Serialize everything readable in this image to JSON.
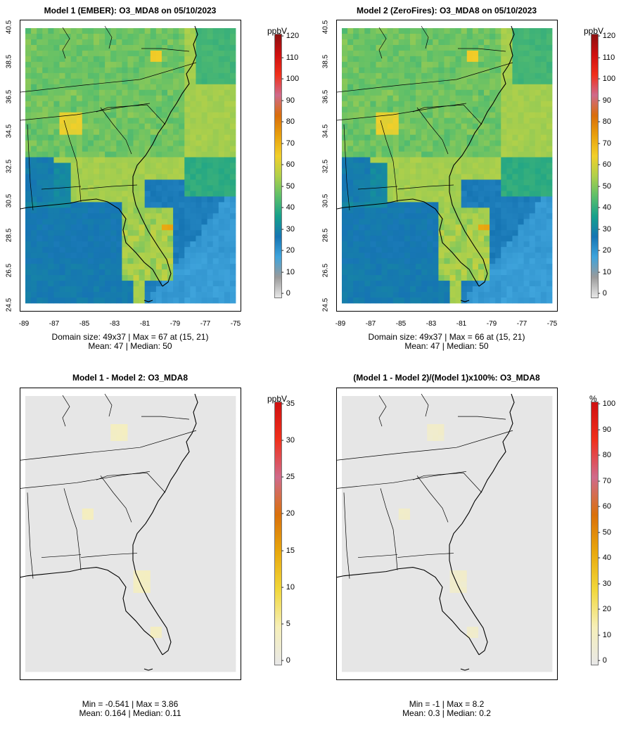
{
  "panels": [
    {
      "title": "Model 1 (EMBER): O3_MDA8 on 05/10/2023",
      "stats_line1": "Domain size: 49x37 | Max = 67 at (15, 21)",
      "stats_line2": "Mean: 47 |  Median: 50",
      "colorbar": {
        "unit": "ppbV",
        "ticks": [
          "120",
          "110",
          "100",
          "90",
          "80",
          "70",
          "60",
          "50",
          "40",
          "30",
          "20",
          "10",
          "0"
        ],
        "scale": "ozone"
      },
      "lat_ticks": [
        "40.5",
        "38.5",
        "36.5",
        "34.5",
        "32.5",
        "30.5",
        "28.5",
        "26.5",
        "24.5"
      ],
      "lon_ticks": [
        "-89",
        "-87",
        "-85",
        "-83",
        "-81",
        "-79",
        "-77",
        "-75"
      ],
      "field": "model1"
    },
    {
      "title": "Model 2 (ZeroFires): O3_MDA8 on 05/10/2023",
      "stats_line1": "Domain size: 49x37 | Max = 66 at (15, 21)",
      "stats_line2": "Mean: 47 |  Median: 50",
      "colorbar": {
        "unit": "ppbV",
        "ticks": [
          "120",
          "110",
          "100",
          "90",
          "80",
          "70",
          "60",
          "50",
          "40",
          "30",
          "20",
          "10",
          "0"
        ],
        "scale": "ozone"
      },
      "lat_ticks": [
        "40.5",
        "38.5",
        "36.5",
        "34.5",
        "32.5",
        "30.5",
        "28.5",
        "26.5",
        "24.5"
      ],
      "lon_ticks": [
        "-89",
        "-87",
        "-85",
        "-83",
        "-81",
        "-79",
        "-77",
        "-75"
      ],
      "field": "model2"
    },
    {
      "title": "Model 1 - Model 2: O3_MDA8",
      "stats_line1": "Min = -0.541 | Max = 3.86",
      "stats_line2": "Mean: 0.164 |  Median: 0.11",
      "colorbar": {
        "unit": "ppbV",
        "ticks": [
          "35",
          "30",
          "25",
          "20",
          "15",
          "10",
          "5",
          "0"
        ],
        "scale": "diff"
      },
      "lat_ticks": [],
      "lon_ticks": [],
      "field": "diff"
    },
    {
      "title": "(Model 1 - Model 2)/(Model 1)x100%: O3_MDA8",
      "stats_line1": "Min = -1 | Max = 8.2",
      "stats_line2": "Mean: 0.3 |  Median: 0.2",
      "colorbar": {
        "unit": "%",
        "ticks": [
          "100",
          "90",
          "80",
          "70",
          "60",
          "50",
          "40",
          "30",
          "20",
          "10",
          "0"
        ],
        "scale": "diff"
      },
      "lat_ticks": [],
      "lon_ticks": [],
      "field": "pct"
    }
  ],
  "colors": {
    "ozone": [
      "#e8e8e8",
      "#9a9a9a",
      "#3fa4dc",
      "#1675b3",
      "#15a08c",
      "#5cbf6a",
      "#b0d04a",
      "#f1cf2a",
      "#e8a10d",
      "#d96d0b",
      "#cf6a8b",
      "#f0301c",
      "#cf1010",
      "#8b1010"
    ],
    "diff": [
      "#e8e8e8",
      "#f6efb8",
      "#f1d73a",
      "#e8a80d",
      "#d9700b",
      "#cf6a8b",
      "#f0301c",
      "#cf1010"
    ],
    "background_grey": "#e6e6e6"
  }
}
